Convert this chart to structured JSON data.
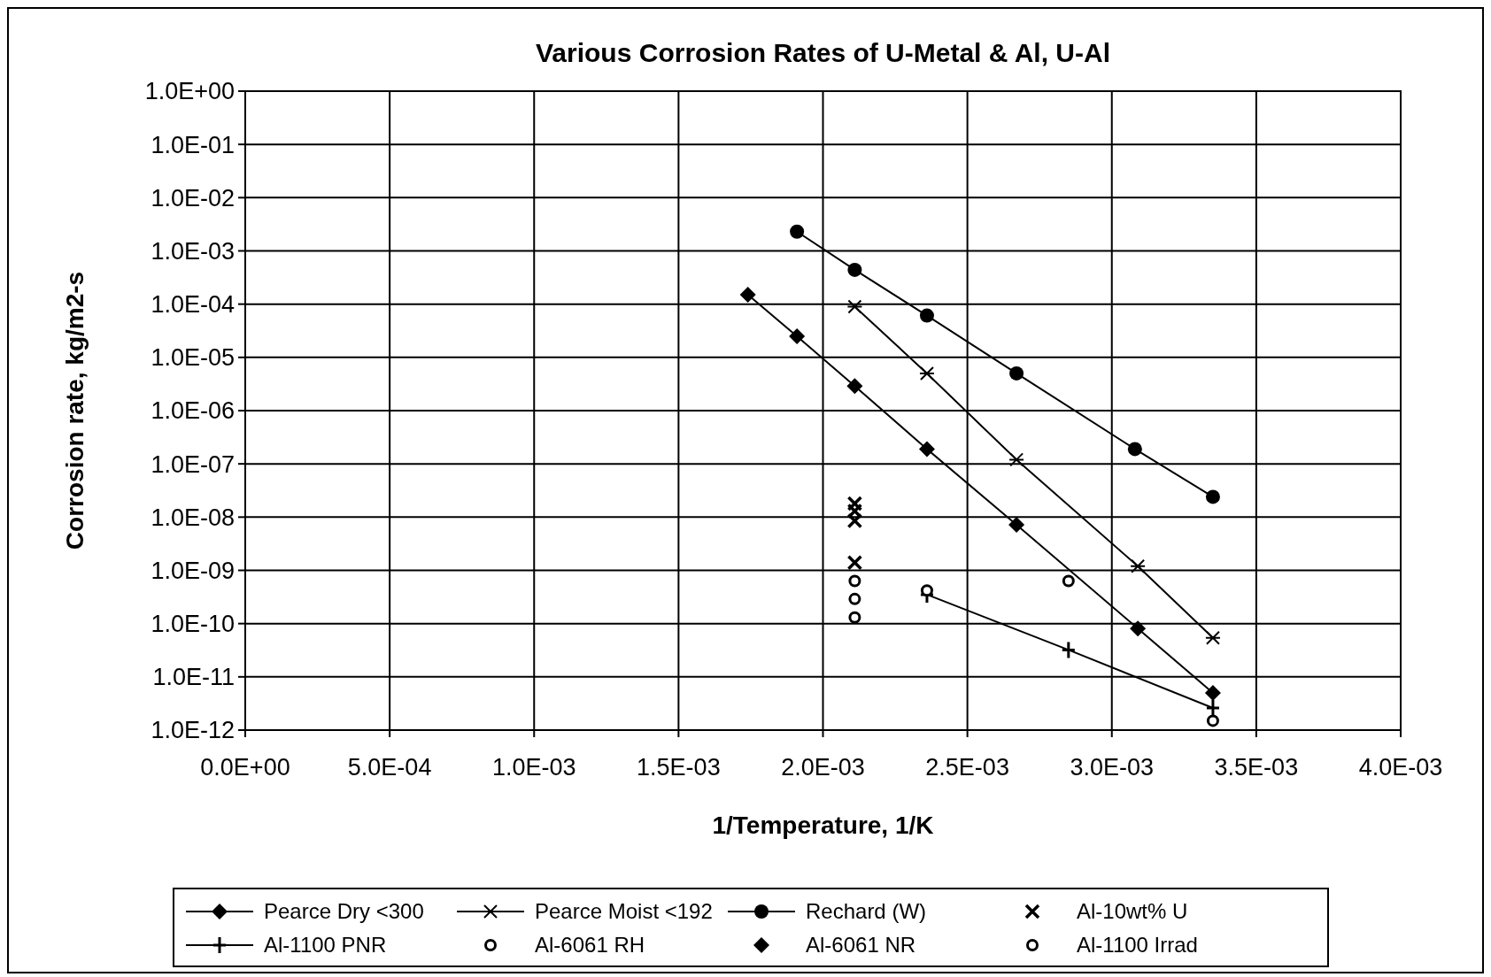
{
  "chart_data": {
    "type": "line",
    "title": "Various Corrosion Rates of U-Metal & Al, U-Al",
    "xlabel": "1/Temperature, 1/K",
    "ylabel": "Corrosion rate, kg/m2-s",
    "log": "y",
    "grid": true,
    "legend": "bottom",
    "xlim": [
      0,
      0.004
    ],
    "xticks": [
      {
        "value": 0,
        "label": "0.0E+00"
      },
      {
        "value": 0.0005,
        "label": "5.0E-04"
      },
      {
        "value": 0.001,
        "label": "1.0E-03"
      },
      {
        "value": 0.0015,
        "label": "1.5E-03"
      },
      {
        "value": 0.002,
        "label": "2.0E-03"
      },
      {
        "value": 0.0025,
        "label": "2.5E-03"
      },
      {
        "value": 0.003,
        "label": "3.0E-03"
      },
      {
        "value": 0.0035,
        "label": "3.5E-03"
      },
      {
        "value": 0.004,
        "label": "4.0E-03"
      }
    ],
    "ylim": [
      1e-12,
      1
    ],
    "yticks": [
      {
        "value": 1e-12,
        "label": "1.0E-12"
      },
      {
        "value": 1e-11,
        "label": "1.0E-11"
      },
      {
        "value": 1e-10,
        "label": "1.0E-10"
      },
      {
        "value": 1e-09,
        "label": "1.0E-09"
      },
      {
        "value": 1e-08,
        "label": "1.0E-08"
      },
      {
        "value": 1e-07,
        "label": "1.0E-07"
      },
      {
        "value": 1e-06,
        "label": "1.0E-06"
      },
      {
        "value": 1e-05,
        "label": "1.0E-05"
      },
      {
        "value": 0.0001,
        "label": "1.0E-04"
      },
      {
        "value": 0.001,
        "label": "1.0E-03"
      },
      {
        "value": 0.01,
        "label": "1.0E-02"
      },
      {
        "value": 0.1,
        "label": "1.0E-01"
      },
      {
        "value": 1,
        "label": "1.0E+00"
      }
    ],
    "series": [
      {
        "name": "Pearce Dry <300",
        "type": "line",
        "color": "#000000",
        "marker": "diamond",
        "line_style": "solid",
        "x": [
          0.00174,
          0.00191,
          0.00211,
          0.00236,
          0.00267,
          0.00309,
          0.00335
        ],
        "values": [
          0.00015,
          2.5e-05,
          2.9e-06,
          1.9e-07,
          7.2e-09,
          8.1e-11,
          5e-12
        ]
      },
      {
        "name": "Pearce Moist <192",
        "type": "line",
        "color": "#000000",
        "marker": "cross",
        "line_style": "solid",
        "x": [
          0.00211,
          0.00236,
          0.00267,
          0.00309,
          0.00335
        ],
        "values": [
          9e-05,
          5e-06,
          1.2e-07,
          1.2e-09,
          5.4e-11
        ]
      },
      {
        "name": "Rechard (W)",
        "type": "line",
        "color": "#000000",
        "marker": "circle",
        "line_style": "solid",
        "x": [
          0.00191,
          0.00211,
          0.00236,
          0.00267,
          0.00308,
          0.00335
        ],
        "values": [
          0.0023,
          0.00044,
          6.1e-05,
          5e-06,
          1.9e-07,
          2.4e-08
        ]
      },
      {
        "name": "Al-10wt% U",
        "type": "scatter",
        "color": "#000000",
        "marker": "cross",
        "x": [
          0.00211,
          0.00211,
          0.00211,
          0.00211
        ],
        "values": [
          1.8e-08,
          1.3e-08,
          8.5e-09,
          1.4e-09
        ]
      },
      {
        "name": "Al-1100 PNR",
        "type": "line",
        "color": "#000000",
        "marker": "plus",
        "line_style": "solid",
        "x": [
          0.00236,
          0.00285,
          0.00335
        ],
        "values": [
          3.5e-10,
          3.2e-11,
          2.6e-12
        ]
      },
      {
        "name": "Al-6061 RH",
        "type": "scatter",
        "color": "#000000",
        "marker": "circle",
        "x": [
          0.00211,
          0.00211
        ],
        "values": [
          2.9e-10,
          1.3e-10
        ]
      },
      {
        "name": "Al-6061 NR",
        "type": "scatter",
        "color": "#000000",
        "marker": "diamond"
      },
      {
        "name": "Al-1100 Irrad",
        "type": "scatter",
        "color": "#000000",
        "marker": "circle",
        "x": [
          0.00211,
          0.00236,
          0.00285,
          0.00335
        ],
        "values": [
          6.3e-10,
          4.2e-10,
          6.3e-10,
          1.5e-12
        ]
      }
    ]
  }
}
